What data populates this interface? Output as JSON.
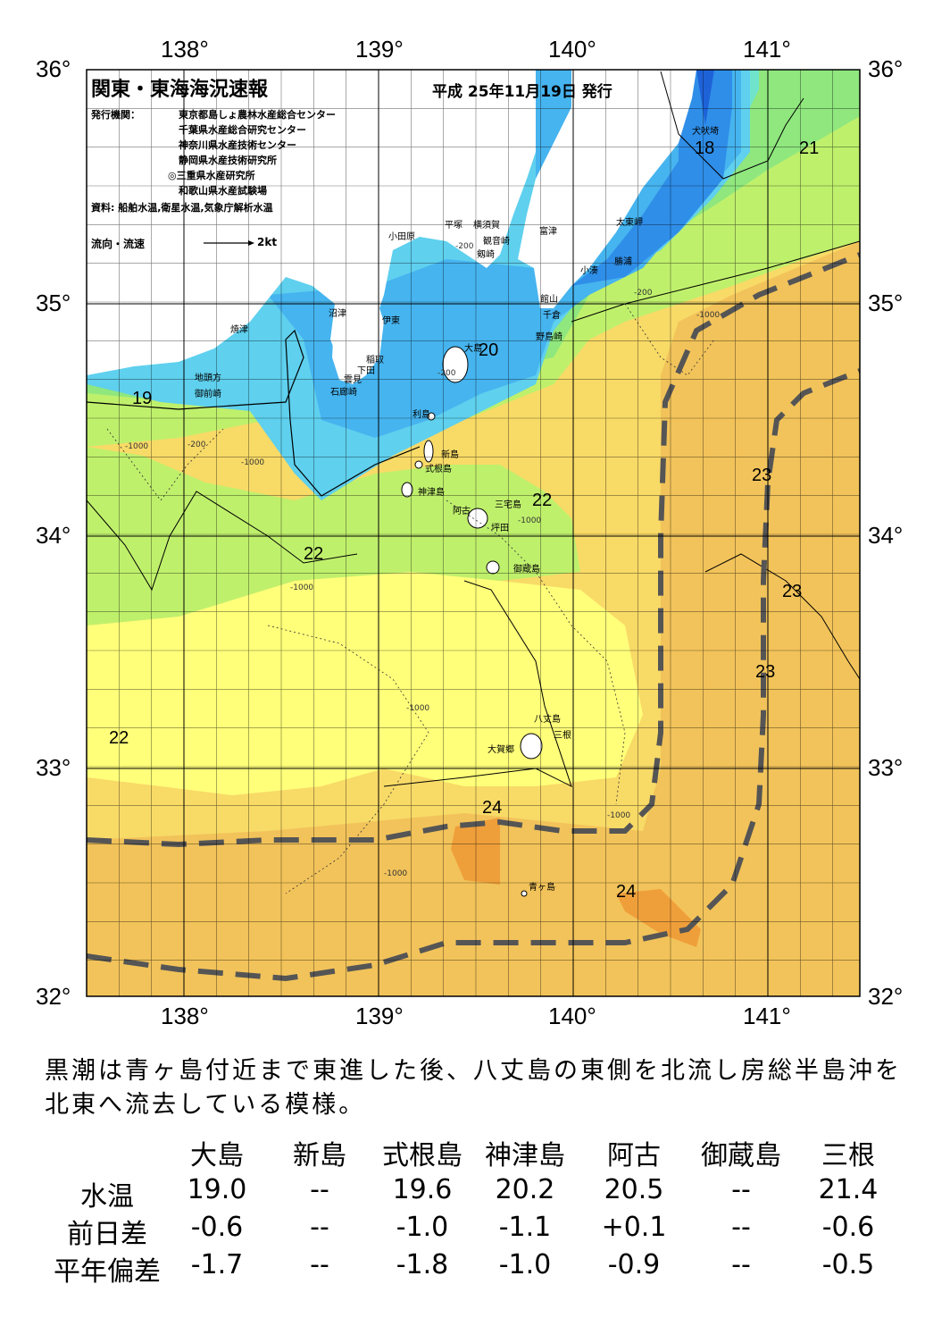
{
  "header": {
    "title": "関東・東海海況速報",
    "date": "平成 25年11月19日 発行",
    "publisher_label": "発行機関：",
    "publishers": [
      "東京都島しょ農林水産総合センター",
      "千葉県水産総合研究センター",
      "神奈川県水産技術センター",
      "静岡県水産技術研究所",
      "◎三重県水産研究所",
      "和歌山県水産試験場"
    ],
    "sources": "資料: 船舶水温,衛星水温,気象庁解析水温",
    "current_legend": "流向・流速",
    "current_scale": "2kt"
  },
  "axes": {
    "lon_top": [
      "138°",
      "139°",
      "140°",
      "141°"
    ],
    "lon_bottom": [
      "138°",
      "139°",
      "140°",
      "141°"
    ],
    "lat_left": [
      "36°",
      "35°",
      "34°",
      "33°",
      "32°"
    ],
    "lat_right": [
      "36°",
      "35°",
      "34°",
      "33°",
      "32°"
    ]
  },
  "isotherm_labels": [
    "18",
    "21",
    "19",
    "20",
    "22",
    "22",
    "23",
    "23",
    "23",
    "22",
    "24",
    "24"
  ],
  "depth_labels": [
    "-200",
    "-1000"
  ],
  "places": [
    "犬吠埼",
    "太東岬",
    "勝浦",
    "小湊",
    "富津",
    "館山",
    "千倉",
    "野島崎",
    "横須賀",
    "平塚",
    "観音崎",
    "剱崎",
    "小田原",
    "沼津",
    "伊東",
    "稲取",
    "下田",
    "雲見",
    "石廊崎",
    "焼津",
    "地頭方",
    "御前崎",
    "大島",
    "利島",
    "新島",
    "式根島",
    "神津島",
    "三宅島",
    "阿古",
    "坪田",
    "御蔵島",
    "八丈島",
    "三根",
    "大賀郷",
    "青ヶ島"
  ],
  "summary": "黒潮は青ヶ島付近まで東進した後、八丈島の東側を北流し房総半島沖を北東へ流去している模様。",
  "table": {
    "columns": [
      "大島",
      "新島",
      "式根島",
      "神津島",
      "阿古",
      "御蔵島",
      "三根"
    ],
    "rows": [
      {
        "label": "水温",
        "values": [
          "19.0",
          "--",
          "19.6",
          "20.2",
          "20.5",
          "--",
          "21.4"
        ]
      },
      {
        "label": "前日差",
        "values": [
          "-0.6",
          "--",
          "-1.0",
          "-1.1",
          "+0.1",
          "--",
          "-0.6"
        ]
      },
      {
        "label": "平年偏差",
        "values": [
          "-1.7",
          "--",
          "-1.8",
          "-1.0",
          "-0.9",
          "--",
          "-0.5"
        ]
      }
    ]
  },
  "colors": {
    "band_16": "#1e62d8",
    "band_17": "#2f8ee8",
    "band_18": "#46b4ef",
    "band_19": "#5fd0ee",
    "band_20": "#6fe3cc",
    "band_21": "#8fe77e",
    "band_22": "#bff06c",
    "band_23": "#ffff7a",
    "band_23b": "#f8da67",
    "band_24": "#f2c35a",
    "band_25": "#ef9f3a",
    "land": "#ffffff",
    "kuroshio_axis": "#555555"
  }
}
